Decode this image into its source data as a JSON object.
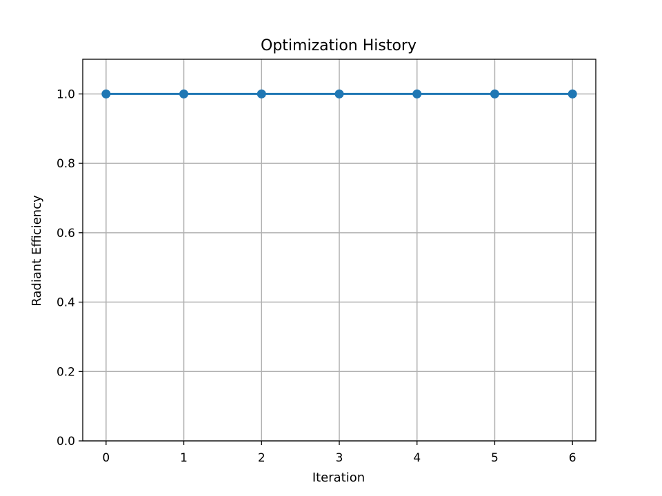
{
  "chart_data": {
    "type": "line",
    "title": "Optimization History",
    "xlabel": "Iteration",
    "ylabel": "Radiant Efficiency",
    "x": [
      0,
      1,
      2,
      3,
      4,
      5,
      6
    ],
    "series": [
      {
        "values": [
          1.0,
          1.0,
          1.0,
          1.0,
          1.0,
          1.0,
          1.0
        ],
        "color": "#1f77b4",
        "marker": "circle"
      }
    ],
    "xlim": [
      -0.3,
      6.3
    ],
    "ylim": [
      0.0,
      1.1
    ],
    "xticks": [
      0,
      1,
      2,
      3,
      4,
      5,
      6
    ],
    "xtick_labels": [
      "0",
      "1",
      "2",
      "3",
      "4",
      "5",
      "6"
    ],
    "yticks": [
      0.0,
      0.2,
      0.4,
      0.6,
      0.8,
      1.0
    ],
    "ytick_labels": [
      "0.0",
      "0.2",
      "0.4",
      "0.6",
      "0.8",
      "1.0"
    ],
    "grid": true
  }
}
